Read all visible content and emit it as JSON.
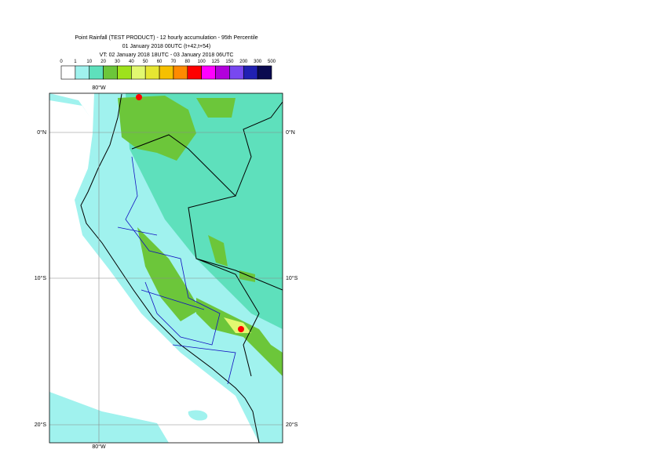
{
  "header": {
    "title": "Point Rainfall (TEST PRODUCT) - 12 hourly accumulation - 95th Percentile",
    "base_time": "01 January 2018 00UTC (t+42,t+54)",
    "valid_time": "VT: 02 January 2018 18UTC - 03 January 2018 06UTC"
  },
  "colorbar": {
    "levels": [
      "0",
      "1",
      "10",
      "20",
      "30",
      "40",
      "50",
      "60",
      "70",
      "80",
      "100",
      "125",
      "150",
      "200",
      "300",
      "500"
    ],
    "colors": [
      "#ffffff",
      "#a0f2ee",
      "#5ee0bc",
      "#6cc63a",
      "#9ee21c",
      "#e2f870",
      "#e6e632",
      "#f6c000",
      "#ff8a00",
      "#ff0000",
      "#ff00ff",
      "#b200dc",
      "#7848f0",
      "#2020b2",
      "#0a0a50"
    ]
  },
  "map": {
    "lon_label": "80°W",
    "lat_labels": [
      "0°N",
      "10°S",
      "20°S"
    ]
  }
}
